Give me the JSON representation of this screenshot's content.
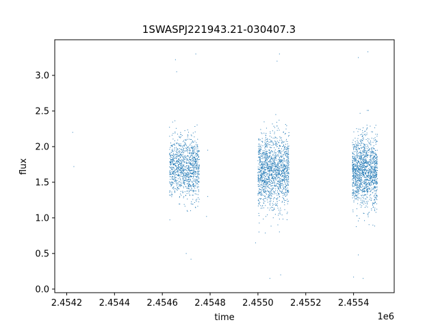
{
  "chart_data": {
    "type": "scatter",
    "title": "1SWASPJ221943.21-030407.3",
    "xlabel": "time",
    "ylabel": "flux",
    "x_offset_label": "1e6",
    "xlim": [
      2.45415,
      2.45557
    ],
    "ylim": [
      -0.05,
      3.5
    ],
    "x_ticks": [
      2.4542,
      2.4544,
      2.4546,
      2.4548,
      2.455,
      2.4552,
      2.4554
    ],
    "x_tick_labels": [
      "2.4542",
      "2.4544",
      "2.4546",
      "2.4548",
      "2.4550",
      "2.4552",
      "2.4554"
    ],
    "y_ticks": [
      0.0,
      0.5,
      1.0,
      1.5,
      2.0,
      2.5,
      3.0
    ],
    "y_tick_labels": [
      "0.0",
      "0.5",
      "1.0",
      "1.5",
      "2.0",
      "2.5",
      "3.0"
    ],
    "grid": false,
    "marker_color": "#1f77b4",
    "clusters": [
      {
        "x_range": [
          2.45463,
          2.454755
        ],
        "center": 1.7,
        "spread": 0.28,
        "points": 1100
      },
      {
        "x_range": [
          2.455,
          2.45513
        ],
        "center": 1.65,
        "spread": 0.34,
        "points": 1500
      },
      {
        "x_range": [
          2.455395,
          2.4555
        ],
        "center": 1.65,
        "spread": 0.33,
        "points": 1400
      }
    ],
    "outliers": [
      {
        "x": 2.454225,
        "y": 2.2
      },
      {
        "x": 2.45423,
        "y": 1.72
      },
      {
        "x": 2.45479,
        "y": 1.95
      },
      {
        "x": 2.45479,
        "y": 1.3
      },
      {
        "x": 2.454785,
        "y": 1.02
      },
      {
        "x": 2.454655,
        "y": 3.22
      },
      {
        "x": 2.45466,
        "y": 3.05
      },
      {
        "x": 2.4547,
        "y": 0.5
      },
      {
        "x": 2.45472,
        "y": 0.42
      },
      {
        "x": 2.45474,
        "y": 3.3
      },
      {
        "x": 2.45499,
        "y": 0.65
      },
      {
        "x": 2.45509,
        "y": 3.3
      },
      {
        "x": 2.45508,
        "y": 3.2
      },
      {
        "x": 2.45505,
        "y": 0.15
      },
      {
        "x": 2.455095,
        "y": 0.2
      },
      {
        "x": 2.45542,
        "y": 3.25
      },
      {
        "x": 2.45546,
        "y": 3.33
      },
      {
        "x": 2.4554,
        "y": 0.17
      },
      {
        "x": 2.45544,
        "y": 0.15
      },
      {
        "x": 2.45542,
        "y": 0.48
      }
    ]
  }
}
